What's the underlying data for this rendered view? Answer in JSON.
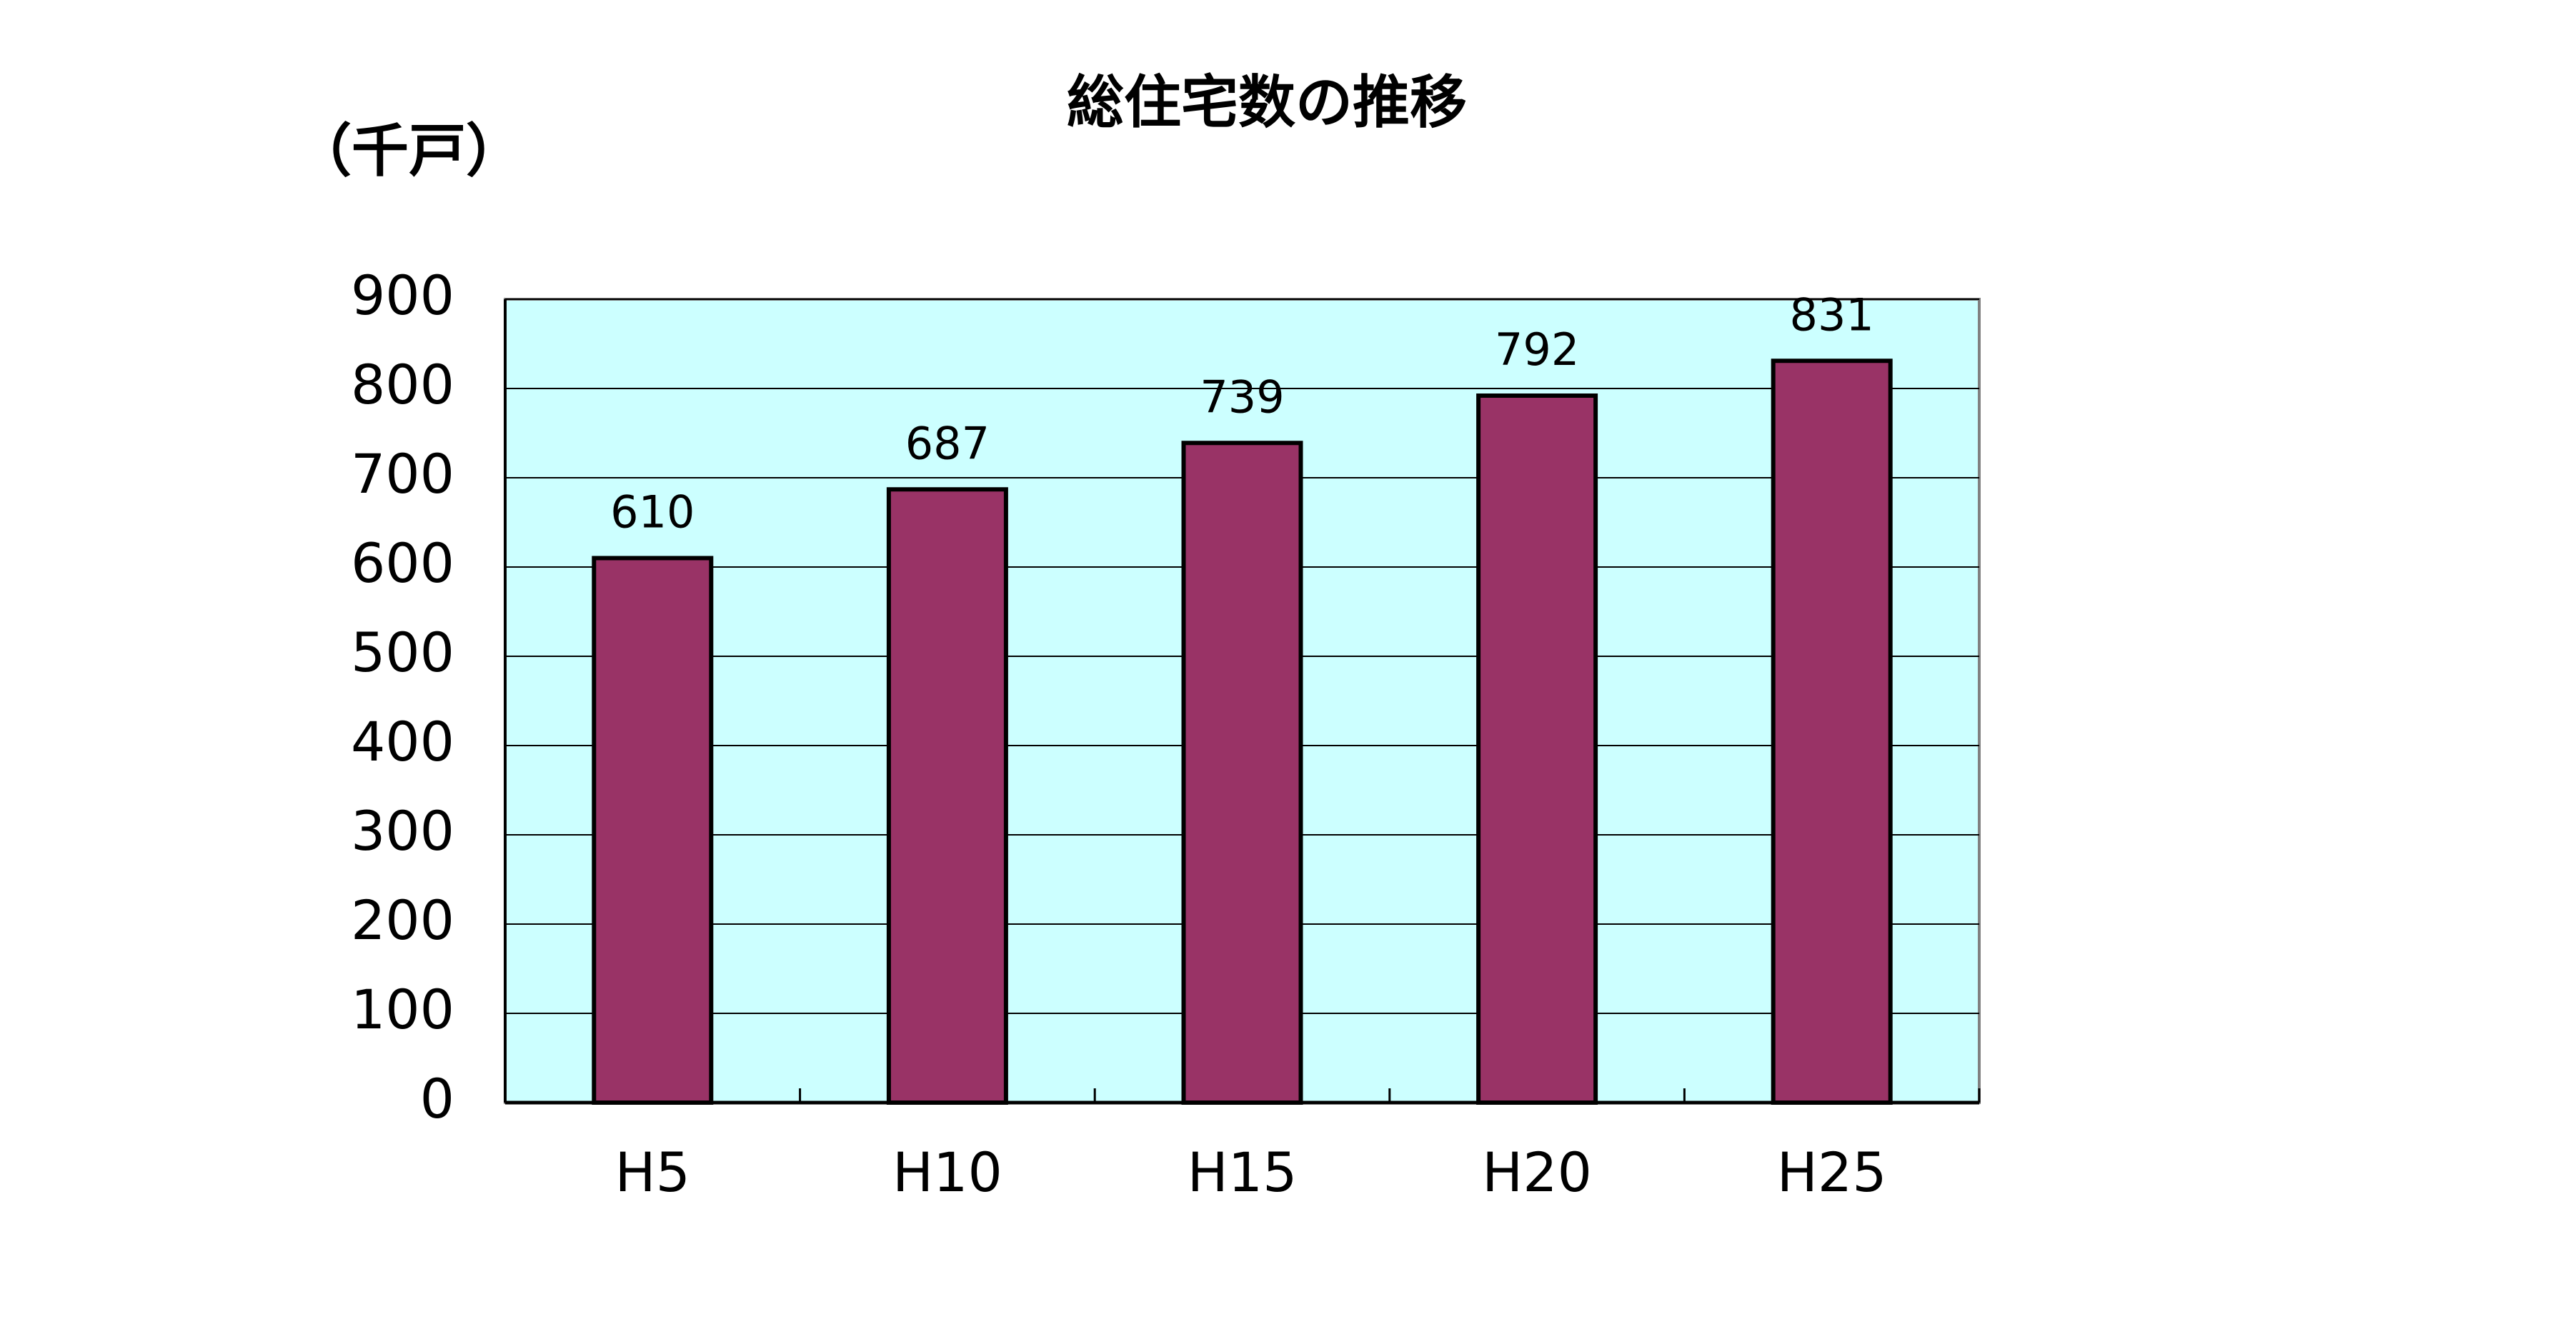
{
  "chart_data": {
    "type": "bar",
    "title": "総住宅数の推移",
    "y_label": "（千戸）",
    "categories": [
      "H5",
      "H10",
      "H15",
      "H20",
      "H25"
    ],
    "values": [
      610,
      687,
      739,
      792,
      831
    ],
    "color": "#993366",
    "plot_background": "#ccffff",
    "ylim": [
      0,
      900
    ],
    "yticks": [
      0,
      100,
      200,
      300,
      400,
      500,
      600,
      700,
      800,
      900
    ],
    "grid": true
  }
}
